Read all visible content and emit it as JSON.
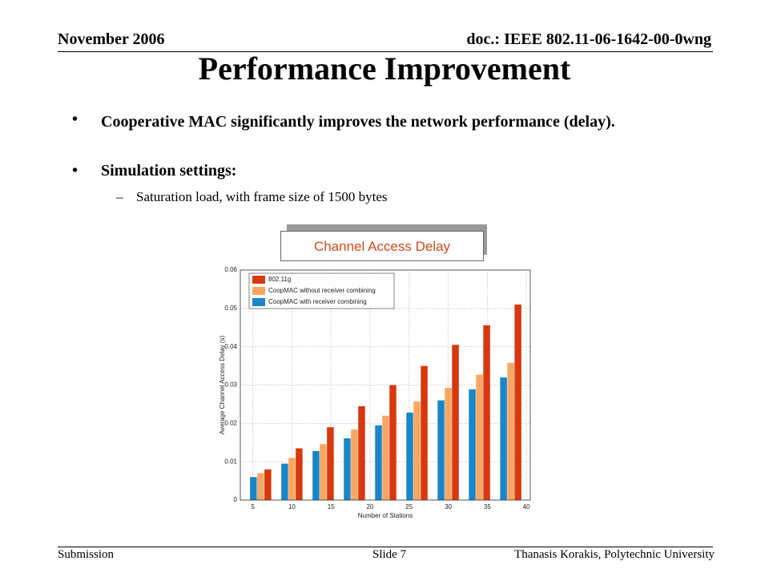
{
  "header": {
    "date": "November 2006",
    "doc": "doc.: IEEE 802.11-06-1642-00-0wng"
  },
  "title": "Performance Improvement",
  "bullets": [
    "Cooperative MAC significantly improves the network performance (delay).",
    "Simulation settings:"
  ],
  "sub_bullets": [
    "Saturation load, with frame size of 1500 bytes"
  ],
  "callout": "Channel Access Delay",
  "chart_data": {
    "type": "bar",
    "x_label": "Number of Stations",
    "y_label": "Average Channel Access Delay (s)",
    "x": [
      6,
      10,
      14,
      18,
      22,
      26,
      30,
      34,
      38
    ],
    "series": [
      {
        "name": "802.11g",
        "color": "#d8380f",
        "values": [
          0.008,
          0.0135,
          0.019,
          0.0245,
          0.03,
          0.035,
          0.0405,
          0.0456,
          0.051
        ]
      },
      {
        "name": "CoopMAC without receiver combining",
        "color": "#f7a763",
        "values": [
          0.007,
          0.011,
          0.0146,
          0.0184,
          0.022,
          0.0257,
          0.0293,
          0.0327,
          0.0358
        ]
      },
      {
        "name": "CoopMAC with receiver combining",
        "color": "#1a86c8",
        "values": [
          0.006,
          0.0095,
          0.0128,
          0.0161,
          0.0195,
          0.0228,
          0.026,
          0.0289,
          0.032
        ]
      }
    ],
    "xlim": [
      3.4,
      40.5
    ],
    "xticks": [
      5,
      10,
      15,
      20,
      25,
      30,
      35,
      40
    ],
    "ylim": [
      0,
      0.06
    ],
    "yticks": [
      0,
      0.01,
      0.02,
      0.03,
      0.04,
      0.05,
      0.06
    ],
    "grid": true,
    "legend": "upper left"
  },
  "footer": {
    "left": "Submission",
    "center": "Slide 7",
    "right": "Thanasis Korakis, Polytechnic University"
  }
}
